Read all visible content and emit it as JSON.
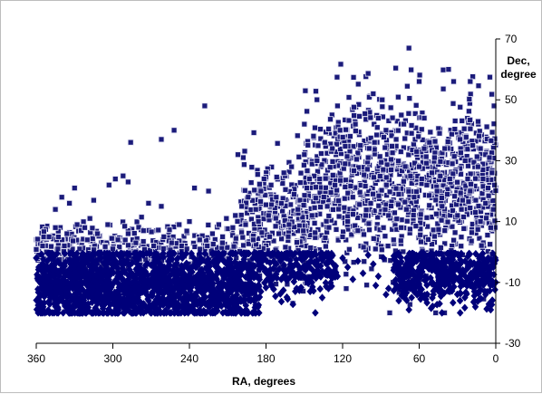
{
  "chart_data": {
    "type": "scatter",
    "title": "",
    "xlabel": "RA, degrees",
    "ylabel": [
      "Dec,",
      "degree"
    ],
    "xlim": [
      360,
      0
    ],
    "ylim": [
      -30,
      70
    ],
    "x_reversed": true,
    "y_axis_side": "right",
    "grid": false,
    "legend": "none",
    "x_ticks": [
      {
        "value": 360,
        "label": "360"
      },
      {
        "value": 300,
        "label": "300"
      },
      {
        "value": 240,
        "label": "240"
      },
      {
        "value": 180,
        "label": "180"
      },
      {
        "value": 120,
        "label": "120"
      },
      {
        "value": 60,
        "label": "60"
      },
      {
        "value": 0,
        "label": "0"
      }
    ],
    "y_ticks": [
      {
        "value": 70,
        "label": "70"
      },
      {
        "value": 50,
        "label": "50"
      },
      {
        "value": 30,
        "label": "30"
      },
      {
        "value": 10,
        "label": "10"
      },
      {
        "value": -10,
        "label": "-10"
      },
      {
        "value": -30,
        "label": "-30"
      }
    ],
    "series": [
      {
        "marker": "square",
        "color": "#1b1b7a",
        "edge_color": "#e6e6f5",
        "points": [
          [
            286,
            36
          ],
          [
            345,
            14
          ],
          [
            334,
            16
          ],
          [
            330,
            21
          ],
          [
            340,
            18
          ],
          [
            228,
            48
          ],
          [
            202,
            32
          ],
          [
            150,
            42
          ],
          [
            124,
            48
          ],
          [
            96,
            52
          ],
          [
            89,
            50
          ],
          [
            74,
            45
          ],
          [
            68,
            67
          ],
          [
            60,
            56
          ],
          [
            37,
            60
          ],
          [
            33,
            56
          ],
          [
            20,
            56
          ],
          [
            18,
            35
          ],
          [
            8,
            32
          ],
          [
            262,
            37
          ],
          [
            252,
            40
          ],
          [
            298,
            24
          ],
          [
            303,
            22
          ],
          [
            315,
            17
          ],
          [
            318,
            11
          ],
          [
            322,
            8
          ],
          [
            292,
            25
          ],
          [
            288,
            23
          ],
          [
            272,
            16
          ],
          [
            262,
            15
          ],
          [
            248,
            9
          ],
          [
            240,
            10
          ],
          [
            236,
            21
          ],
          [
            225,
            20
          ],
          [
            217,
            9
          ],
          [
            211,
            11
          ],
          [
            204,
            12
          ],
          [
            199,
            15
          ],
          [
            194,
            18
          ],
          [
            188,
            14
          ],
          [
            184,
            20
          ],
          [
            176,
            22
          ],
          [
            172,
            18
          ],
          [
            166,
            26
          ],
          [
            160,
            28
          ],
          [
            155,
            14
          ],
          [
            150,
            32
          ],
          [
            146,
            24
          ],
          [
            140,
            30
          ],
          [
            134,
            36
          ],
          [
            128,
            34
          ],
          [
            122,
            40
          ],
          [
            118,
            29
          ],
          [
            114,
            38
          ],
          [
            110,
            42
          ],
          [
            106,
            35
          ],
          [
            100,
            31
          ],
          [
            95,
            36
          ],
          [
            92,
            44
          ],
          [
            86,
            40
          ],
          [
            82,
            27
          ],
          [
            78,
            37
          ],
          [
            72,
            42
          ],
          [
            66,
            39
          ],
          [
            62,
            33
          ],
          [
            56,
            44
          ],
          [
            52,
            36
          ],
          [
            48,
            31
          ],
          [
            44,
            39
          ],
          [
            40,
            34
          ],
          [
            34,
            29
          ],
          [
            28,
            37
          ],
          [
            24,
            30
          ],
          [
            14,
            28
          ],
          [
            10,
            24
          ],
          [
            6,
            21
          ],
          [
            3,
            26
          ],
          [
            350,
            5
          ],
          [
            345,
            8
          ],
          [
            336,
            6
          ],
          [
            328,
            9
          ],
          [
            320,
            4
          ],
          [
            312,
            6
          ],
          [
            304,
            9
          ],
          [
            296,
            4
          ],
          [
            288,
            6
          ],
          [
            282,
            3
          ],
          [
            276,
            7
          ],
          [
            268,
            2
          ],
          [
            260,
            5
          ],
          [
            254,
            3
          ],
          [
            246,
            2
          ],
          [
            232,
            4
          ],
          [
            222,
            6
          ],
          [
            214,
            5
          ],
          [
            206,
            8
          ],
          [
            196,
            9
          ],
          [
            186,
            10
          ],
          [
            178,
            12
          ],
          [
            168,
            16
          ],
          [
            158,
            19
          ],
          [
            148,
            21
          ],
          [
            138,
            24
          ],
          [
            126,
            22
          ],
          [
            112,
            18
          ],
          [
            102,
            12
          ],
          [
            88,
            8
          ],
          [
            80,
            4
          ],
          [
            70,
            14
          ],
          [
            64,
            18
          ],
          [
            58,
            24
          ],
          [
            54,
            22
          ],
          [
            46,
            20
          ],
          [
            42,
            15
          ],
          [
            36,
            24
          ],
          [
            30,
            12
          ],
          [
            26,
            17
          ],
          [
            20,
            20
          ],
          [
            16,
            13
          ],
          [
            12,
            10
          ],
          [
            8,
            16
          ],
          [
            4,
            8
          ],
          [
            2,
            14
          ],
          [
            355,
            2
          ],
          [
            352,
            0
          ],
          [
            358,
            -1
          ],
          [
            343,
            1
          ],
          [
            338,
            2
          ],
          [
            326,
            1
          ],
          [
            310,
            0
          ],
          [
            300,
            1
          ],
          [
            242,
            1
          ],
          [
            226,
            2
          ],
          [
            190,
            4
          ],
          [
            170,
            6
          ],
          [
            162,
            9
          ],
          [
            144,
            12
          ],
          [
            132,
            15
          ],
          [
            120,
            5
          ],
          [
            116,
            10
          ],
          [
            108,
            7
          ],
          [
            98,
            16
          ],
          [
            84,
            12
          ],
          [
            76,
            19
          ],
          [
            60,
            28
          ],
          [
            50,
            26
          ],
          [
            38,
            19
          ],
          [
            22,
            24
          ],
          [
            12,
            34
          ],
          [
            5,
            31
          ],
          [
            1,
            22
          ]
        ]
      },
      {
        "marker": "diamond",
        "color": "#00007a",
        "edge_color": "#00007a",
        "points": [
          [
            360,
            -2
          ],
          [
            358,
            -5
          ],
          [
            355,
            -9
          ],
          [
            352,
            -12
          ],
          [
            349,
            -15
          ],
          [
            346,
            -17
          ],
          [
            343,
            -19
          ],
          [
            340,
            -14
          ],
          [
            336,
            -18
          ],
          [
            332,
            -11
          ],
          [
            328,
            -16
          ],
          [
            324,
            -19
          ],
          [
            320,
            -13
          ],
          [
            316,
            -8
          ],
          [
            312,
            -17
          ],
          [
            308,
            -20
          ],
          [
            304,
            -11
          ],
          [
            300,
            -15
          ],
          [
            296,
            -19
          ],
          [
            292,
            -9
          ],
          [
            288,
            -14
          ],
          [
            284,
            -18
          ],
          [
            280,
            -12
          ],
          [
            276,
            -20
          ],
          [
            272,
            -16
          ],
          [
            268,
            -10
          ],
          [
            264,
            -19
          ],
          [
            260,
            -13
          ],
          [
            256,
            -17
          ],
          [
            252,
            -20
          ],
          [
            248,
            -15
          ],
          [
            244,
            -11
          ],
          [
            240,
            -18
          ],
          [
            236,
            -14
          ],
          [
            232,
            -19
          ],
          [
            228,
            -12
          ],
          [
            224,
            -16
          ],
          [
            220,
            -20
          ],
          [
            216,
            -13
          ],
          [
            212,
            -17
          ],
          [
            208,
            -10
          ],
          [
            204,
            -15
          ],
          [
            200,
            -19
          ],
          [
            196,
            -11
          ],
          [
            192,
            -16
          ],
          [
            188,
            -8
          ],
          [
            184,
            -13
          ],
          [
            180,
            -6
          ],
          [
            176,
            -11
          ],
          [
            172,
            -4
          ],
          [
            168,
            -9
          ],
          [
            164,
            -2
          ],
          [
            160,
            -7
          ],
          [
            156,
            -12
          ],
          [
            152,
            -1
          ],
          [
            148,
            -5
          ],
          [
            144,
            -10
          ],
          [
            140,
            -3
          ],
          [
            136,
            -15
          ],
          [
            132,
            -6
          ],
          [
            128,
            -1
          ],
          [
            124,
            -8
          ],
          [
            120,
            -2
          ],
          [
            116,
            -5
          ],
          [
            112,
            -9
          ],
          [
            108,
            -3
          ],
          [
            104,
            -7
          ],
          [
            100,
            -1
          ],
          [
            96,
            -4
          ],
          [
            92,
            -8
          ],
          [
            88,
            -2
          ],
          [
            84,
            -12
          ],
          [
            80,
            -6
          ],
          [
            76,
            -16
          ],
          [
            72,
            -10
          ],
          [
            68,
            -19
          ],
          [
            64,
            -13
          ],
          [
            60,
            -8
          ],
          [
            56,
            -15
          ],
          [
            52,
            -4
          ],
          [
            48,
            -11
          ],
          [
            44,
            -17
          ],
          [
            40,
            -6
          ],
          [
            36,
            -13
          ],
          [
            32,
            -9
          ],
          [
            28,
            -16
          ],
          [
            24,
            -3
          ],
          [
            20,
            -11
          ],
          [
            16,
            -18
          ],
          [
            12,
            -7
          ],
          [
            8,
            -14
          ],
          [
            4,
            -19
          ],
          [
            0,
            -10
          ],
          [
            2,
            -5
          ],
          [
            6,
            -2
          ],
          [
            347,
            -6
          ],
          [
            333,
            -4
          ],
          [
            319,
            -2
          ],
          [
            305,
            -5
          ],
          [
            291,
            -3
          ],
          [
            277,
            -6
          ],
          [
            263,
            -4
          ],
          [
            249,
            -2
          ],
          [
            235,
            -5
          ],
          [
            221,
            -3
          ],
          [
            207,
            -6
          ],
          [
            193,
            -4
          ],
          [
            179,
            -9
          ],
          [
            131,
            -12
          ],
          [
            94,
            -11
          ],
          [
            86,
            -14
          ],
          [
            78,
            -3
          ],
          [
            62,
            -3
          ],
          [
            34,
            -2
          ],
          [
            18,
            -4
          ],
          [
            10,
            -2
          ]
        ]
      }
    ],
    "generated_fill": {
      "seed": 20240611,
      "square": [
        {
          "ra": [
            0,
            150
          ],
          "dec_mean": 22,
          "dec_spread": 14,
          "count": 1150
        },
        {
          "ra": [
            150,
            200
          ],
          "dec_mean": 10,
          "dec_spread": 10,
          "count": 260
        },
        {
          "ra": [
            200,
            360
          ],
          "dec_mean": 1,
          "dec_spread": 4,
          "count": 420
        }
      ],
      "diamond": [
        {
          "ra": [
            185,
            360
          ],
          "dec_mean": -11,
          "dec_spread": 6,
          "count": 1500
        },
        {
          "ra": [
            125,
            185
          ],
          "dec_mean": -5,
          "dec_spread": 5,
          "count": 200
        },
        {
          "ra": [
            0,
            80
          ],
          "dec_mean": -7,
          "dec_spread": 5,
          "count": 420
        }
      ]
    }
  }
}
